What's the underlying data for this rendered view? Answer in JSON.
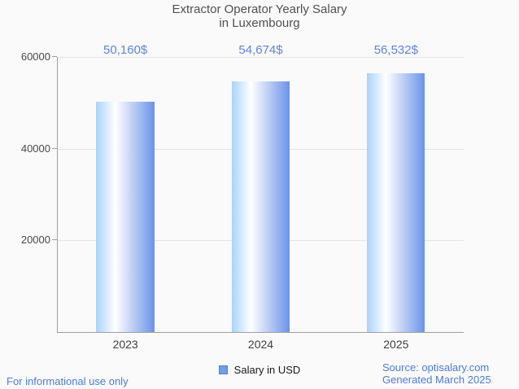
{
  "title": {
    "line1": "Extractor Operator Yearly Salary",
    "line2": "in Luxembourg"
  },
  "chart_data": {
    "type": "bar",
    "title": "Extractor Operator Yearly Salary in Luxembourg",
    "categories": [
      "2023",
      "2024",
      "2025"
    ],
    "values": [
      50160,
      54674,
      56532
    ],
    "value_labels": [
      "50,160$",
      "54,674$",
      "56,532$"
    ],
    "series_name": "Salary in USD",
    "xlabel": "",
    "ylabel": "",
    "ylim": [
      0,
      60000
    ],
    "yticks": [
      20000,
      40000,
      60000
    ],
    "ytick_labels": [
      "20000",
      "40000",
      "60000"
    ],
    "grid": true,
    "legend_position": "bottom"
  },
  "legend": {
    "label": "Salary in USD"
  },
  "footer": {
    "disclaimer": "For informational use only",
    "source": "Source: optisalary.com",
    "generated": "Generated March 2025"
  },
  "colors": {
    "background": "#fafafa",
    "title_text": "#515151",
    "axis_line": "#a0a0a0",
    "gridline": "#e4e4e4",
    "value_label_text": "#5b86e3",
    "footer_text": "#4b7be2",
    "bar_gradient_left": "#a8d3fb",
    "bar_gradient_mid": "#ffffff",
    "bar_gradient_right": "#6b93ea",
    "legend_swatch_fill": "#6d9eeb",
    "legend_swatch_border": "#4d82cf"
  }
}
